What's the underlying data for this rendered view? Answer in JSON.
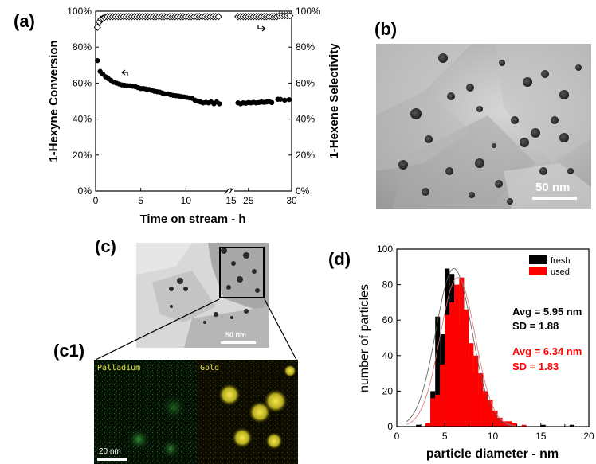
{
  "labels": {
    "a": "(a)",
    "b": "(b)",
    "c": "(c)",
    "c1": "(c1)",
    "d": "(d)"
  },
  "chart_data": [
    {
      "id": "a",
      "type": "scatter",
      "xlabel": "Time on stream - h",
      "ylabel_left": "1-Hexyne Conversion",
      "ylabel_right": "1-Hexene Selectivity",
      "xlim": [
        0,
        30
      ],
      "ylim": [
        0,
        100
      ],
      "x_ticks": [
        "0",
        "5",
        "10",
        "15",
        "25",
        "30"
      ],
      "y_ticks_left": [
        "0%",
        "20%",
        "40%",
        "60%",
        "80%",
        "100%"
      ],
      "y_ticks_right": [
        "0%",
        "20%",
        "40%",
        "60%",
        "80%",
        "100%"
      ],
      "axis_break": "between 15 and 25",
      "series": [
        {
          "marker": "filled circle",
          "color": "#000000",
          "axis": "left",
          "points": [
            [
              0.2,
              72.5
            ],
            [
              0.5,
              66.5
            ],
            [
              0.8,
              65
            ],
            [
              1.1,
              63.5
            ],
            [
              1.4,
              62.5
            ],
            [
              1.7,
              61.5
            ],
            [
              2.0,
              60.5
            ],
            [
              2.3,
              60
            ],
            [
              2.6,
              59.5
            ],
            [
              2.9,
              59
            ],
            [
              3.2,
              58.8
            ],
            [
              3.5,
              58.6
            ],
            [
              3.8,
              58.5
            ],
            [
              4.1,
              58.3
            ],
            [
              4.4,
              58
            ],
            [
              4.7,
              57.5
            ],
            [
              5.0,
              57
            ],
            [
              5.3,
              57
            ],
            [
              5.6,
              56.7
            ],
            [
              5.9,
              56.5
            ],
            [
              6.2,
              56
            ],
            [
              6.5,
              55.5
            ],
            [
              6.8,
              55.2
            ],
            [
              7.1,
              55
            ],
            [
              7.4,
              54.5
            ],
            [
              7.7,
              54
            ],
            [
              8.0,
              54
            ],
            [
              8.3,
              53.5
            ],
            [
              8.6,
              53.2
            ],
            [
              8.9,
              53
            ],
            [
              9.2,
              52.8
            ],
            [
              9.5,
              52.5
            ],
            [
              9.8,
              52.3
            ],
            [
              10.1,
              52
            ],
            [
              10.4,
              51.8
            ],
            [
              10.7,
              51.5
            ],
            [
              11.0,
              50.5
            ],
            [
              11.3,
              50
            ],
            [
              11.6,
              49.5
            ],
            [
              11.9,
              49
            ],
            [
              12.2,
              49.3
            ],
            [
              12.5,
              49
            ],
            [
              12.8,
              49.5
            ],
            [
              13.1,
              48.5
            ],
            [
              13.4,
              49.5
            ],
            [
              13.7,
              48.5
            ],
            [
              23.8,
              49
            ],
            [
              24.1,
              48.5
            ],
            [
              24.4,
              49
            ],
            [
              24.7,
              48.8
            ],
            [
              25.0,
              49.2
            ],
            [
              25.3,
              49
            ],
            [
              25.6,
              49.3
            ],
            [
              25.9,
              49
            ],
            [
              26.2,
              49.2
            ],
            [
              26.5,
              49.5
            ],
            [
              26.8,
              49.3
            ],
            [
              27.1,
              49.5
            ],
            [
              27.4,
              49.7
            ],
            [
              27.7,
              49.2
            ],
            [
              28.4,
              51
            ],
            [
              28.7,
              51
            ],
            [
              29.2,
              50.5
            ],
            [
              29.7,
              50.8
            ]
          ]
        },
        {
          "marker": "open diamond",
          "color": "#000000",
          "axis": "right",
          "points": [
            [
              0.2,
              91
            ],
            [
              0.4,
              94
            ],
            [
              0.6,
              95.5
            ],
            [
              0.8,
              96
            ],
            [
              1.0,
              96.5
            ],
            [
              1.3,
              97
            ],
            [
              1.6,
              97
            ],
            [
              1.9,
              97
            ],
            [
              2.2,
              97
            ],
            [
              2.5,
              97
            ],
            [
              2.8,
              97
            ],
            [
              3.1,
              97
            ],
            [
              3.4,
              97
            ],
            [
              3.7,
              97
            ],
            [
              4.0,
              97
            ],
            [
              4.3,
              97
            ],
            [
              4.6,
              97
            ],
            [
              4.9,
              97
            ],
            [
              5.2,
              97
            ],
            [
              5.5,
              97
            ],
            [
              5.8,
              97
            ],
            [
              6.1,
              97
            ],
            [
              6.4,
              97
            ],
            [
              6.7,
              97
            ],
            [
              7.0,
              97
            ],
            [
              7.3,
              97
            ],
            [
              7.6,
              97
            ],
            [
              7.9,
              97
            ],
            [
              8.2,
              97
            ],
            [
              8.5,
              97
            ],
            [
              8.8,
              97
            ],
            [
              9.1,
              97
            ],
            [
              9.4,
              97
            ],
            [
              9.7,
              97
            ],
            [
              10.0,
              97
            ],
            [
              10.3,
              97
            ],
            [
              10.6,
              97
            ],
            [
              10.9,
              97
            ],
            [
              11.2,
              97
            ],
            [
              11.5,
              97
            ],
            [
              11.8,
              97
            ],
            [
              12.1,
              97
            ],
            [
              12.4,
              97
            ],
            [
              12.7,
              97
            ],
            [
              13.0,
              97
            ],
            [
              13.3,
              97
            ],
            [
              13.6,
              97
            ],
            [
              23.8,
              97
            ],
            [
              24.1,
              97
            ],
            [
              24.4,
              97
            ],
            [
              24.7,
              97
            ],
            [
              25.0,
              97
            ],
            [
              25.3,
              97
            ],
            [
              25.6,
              97
            ],
            [
              25.9,
              97
            ],
            [
              26.2,
              97
            ],
            [
              26.5,
              97
            ],
            [
              26.8,
              97
            ],
            [
              27.1,
              97
            ],
            [
              27.4,
              97
            ],
            [
              27.7,
              97
            ],
            [
              28.0,
              97
            ],
            [
              28.3,
              97
            ],
            [
              28.6,
              97.5
            ],
            [
              28.9,
              97.5
            ],
            [
              29.2,
              97.5
            ],
            [
              29.5,
              97.5
            ],
            [
              29.8,
              97.5
            ]
          ]
        }
      ]
    },
    {
      "id": "d",
      "type": "bar",
      "xlabel": "particle diameter - nm",
      "ylabel": "number of particles",
      "xlim": [
        0,
        20
      ],
      "ylim": [
        0,
        100
      ],
      "x_ticks": [
        "0",
        "5",
        "10",
        "15",
        "20"
      ],
      "y_ticks": [
        "0",
        "20",
        "40",
        "60",
        "80",
        "100"
      ],
      "bin_width": 0.5,
      "legend": {
        "placement": "top-right",
        "entries": [
          "fresh",
          "used"
        ]
      },
      "series": [
        {
          "name": "fresh",
          "color": "#000000",
          "bins": [
            [
              2.0,
              1
            ],
            [
              3.0,
              2
            ],
            [
              3.5,
              20
            ],
            [
              4.0,
              62
            ],
            [
              4.5,
              52
            ],
            [
              5.0,
              89
            ],
            [
              5.5,
              86
            ],
            [
              6.0,
              58
            ],
            [
              6.5,
              78
            ],
            [
              7.0,
              40
            ],
            [
              7.5,
              30
            ],
            [
              8.0,
              18
            ],
            [
              8.5,
              15
            ],
            [
              9.0,
              10
            ],
            [
              9.5,
              7
            ],
            [
              10.0,
              4
            ],
            [
              10.5,
              4
            ],
            [
              11.0,
              2
            ],
            [
              12.0,
              2
            ],
            [
              15.0,
              1
            ],
            [
              18.0,
              1
            ]
          ]
        },
        {
          "name": "used",
          "color": "#ff0000",
          "bins": [
            [
              3.0,
              2
            ],
            [
              3.5,
              16
            ],
            [
              4.0,
              18
            ],
            [
              4.5,
              35
            ],
            [
              5.0,
              63
            ],
            [
              5.5,
              70
            ],
            [
              6.0,
              80
            ],
            [
              6.5,
              84
            ],
            [
              7.0,
              66
            ],
            [
              7.5,
              47
            ],
            [
              8.0,
              40
            ],
            [
              8.5,
              30
            ],
            [
              9.0,
              20
            ],
            [
              9.5,
              15
            ],
            [
              10.0,
              9
            ],
            [
              10.5,
              5
            ],
            [
              11.0,
              3
            ],
            [
              11.5,
              3
            ],
            [
              12.0,
              2
            ],
            [
              13.0,
              1
            ]
          ]
        }
      ],
      "fits": [
        {
          "color": "#555555",
          "mean": 5.95,
          "sd": 1.88,
          "peak": 89
        },
        {
          "color": "#e07070",
          "mean": 6.34,
          "sd": 1.83,
          "peak": 84
        }
      ],
      "annotations": [
        {
          "text": "Avg = 5.95 nm",
          "color": "#000000"
        },
        {
          "text": "SD = 1.88",
          "color": "#000000"
        },
        {
          "text": "Avg = 6.34 nm",
          "color": "#ff0000"
        },
        {
          "text": "SD = 1.83",
          "color": "#ff0000"
        }
      ]
    }
  ],
  "tem_b": {
    "scale_label": "50 nm"
  },
  "tem_c": {
    "scale_label": "50 nm"
  },
  "map_c1": {
    "left_label": "Palladium",
    "right_label": "Gold",
    "scale_label": "20 nm"
  }
}
